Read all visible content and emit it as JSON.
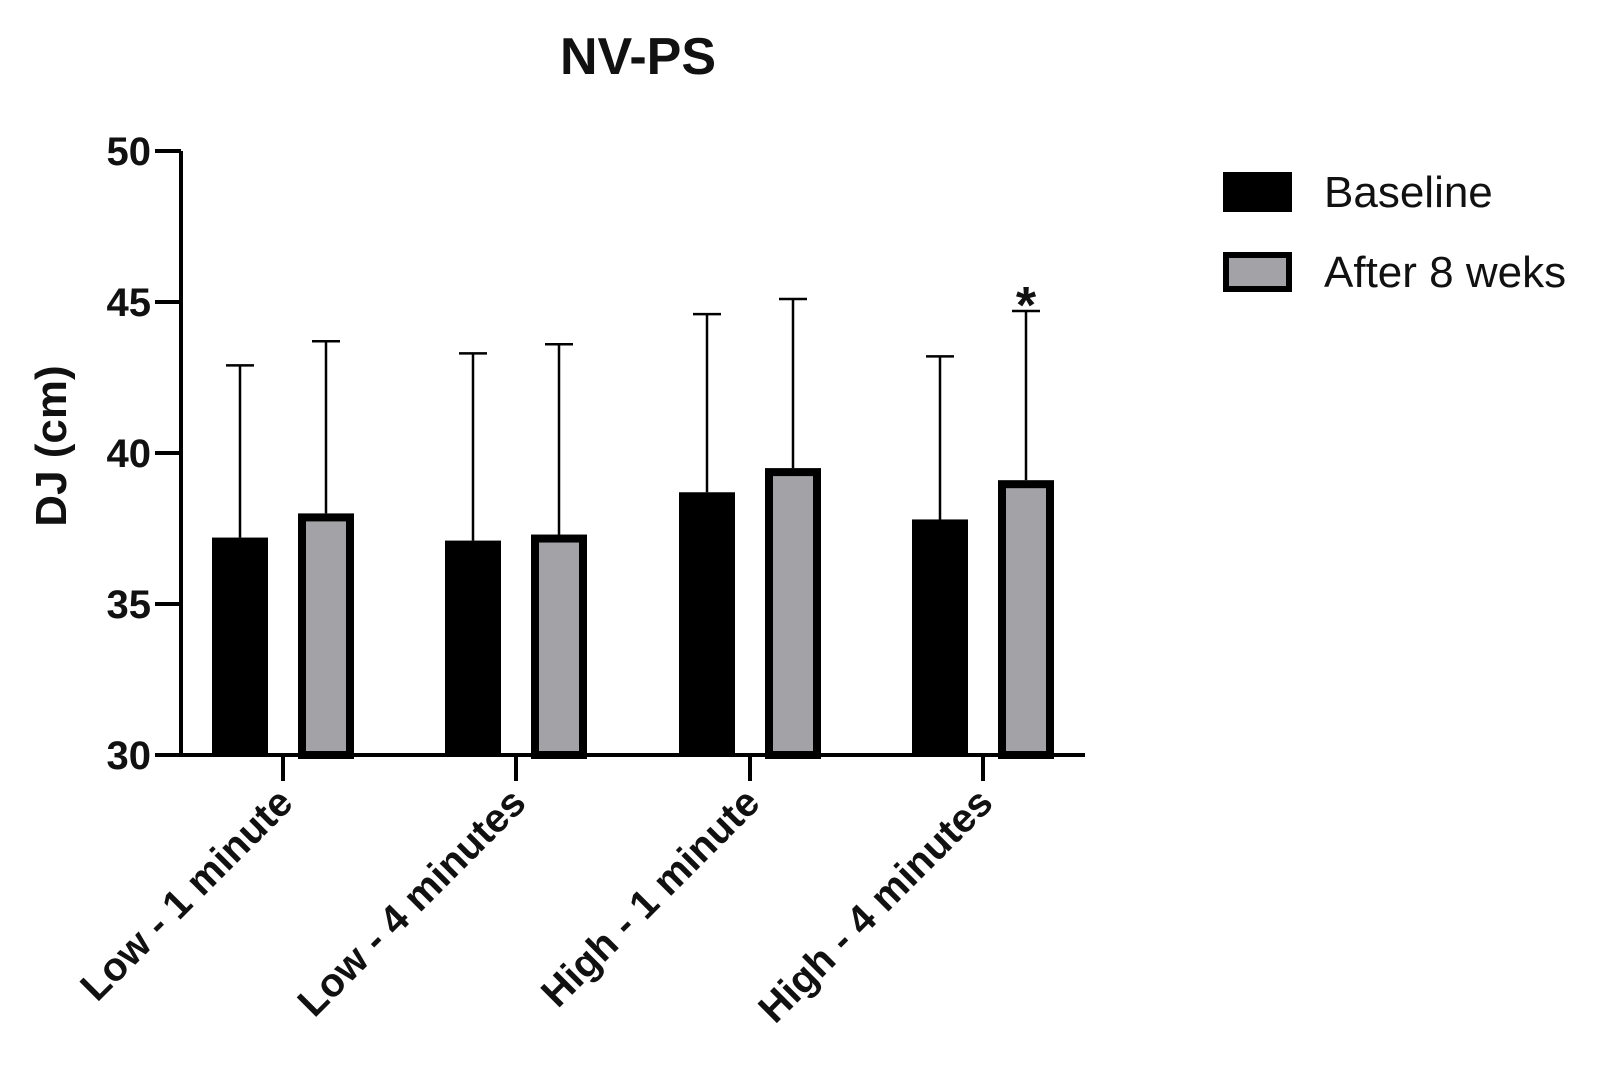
{
  "chart_data": {
    "type": "bar",
    "title": "NV-PS",
    "xlabel": "",
    "ylabel": "DJ (cm)",
    "ylim": [
      30,
      50
    ],
    "yticks": [
      30,
      35,
      40,
      45,
      50
    ],
    "categories": [
      "Low - 1 minute",
      "Low - 4 minutes",
      "High - 1 minute",
      "High - 4 minutes"
    ],
    "series": [
      {
        "name": "Baseline",
        "color": "#000000",
        "values": [
          37.2,
          37.1,
          38.7,
          37.8
        ],
        "error_upper": [
          42.9,
          43.3,
          44.6,
          43.2
        ]
      },
      {
        "name": "After 8 weks",
        "color": "#a3a2a7",
        "stroke": "#000000",
        "values": [
          38.0,
          37.3,
          39.5,
          39.1
        ],
        "error_upper": [
          43.7,
          43.6,
          45.1,
          44.7
        ]
      }
    ],
    "annotations": [
      {
        "text": "*",
        "category_index": 3,
        "series_index": 1
      }
    ],
    "legend_position": "top-right",
    "grid": false
  }
}
